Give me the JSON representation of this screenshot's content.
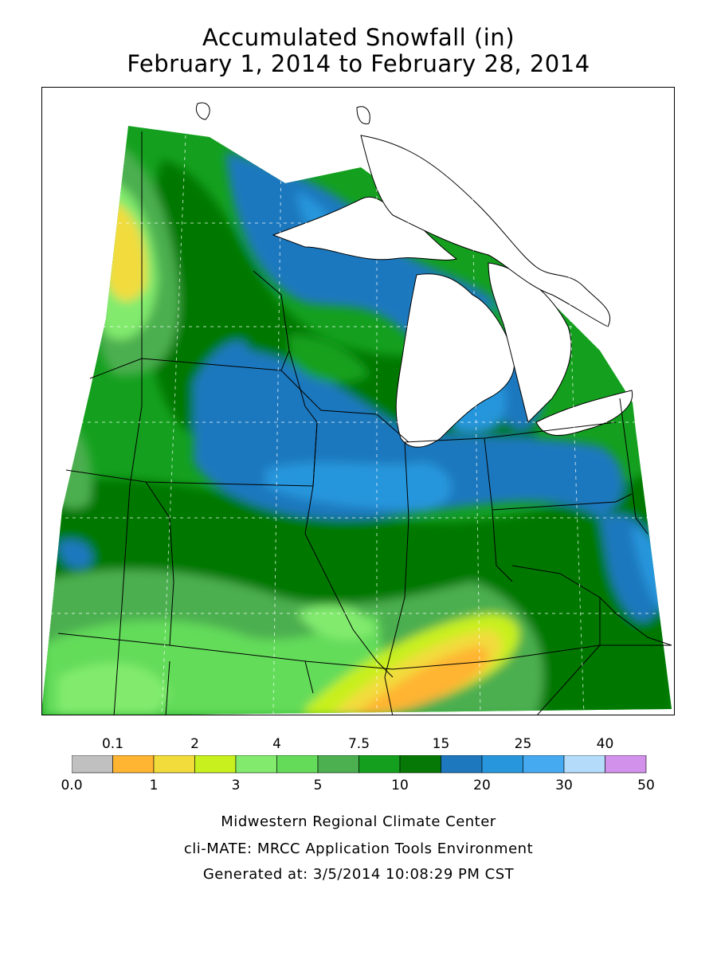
{
  "title": {
    "line1": "Accumulated Snowfall (in)",
    "line2": "February 1, 2014 to February 28, 2014"
  },
  "legend": {
    "upper_labels": [
      "0.1",
      "2",
      "4",
      "7.5",
      "15",
      "25",
      "40"
    ],
    "lower_labels": [
      "0.0",
      "1",
      "3",
      "5",
      "10",
      "20",
      "30",
      "50"
    ],
    "colors": [
      "#c0c0c0",
      "#ffb432",
      "#f2dc3c",
      "#c8f01e",
      "#82eb6e",
      "#64dc5a",
      "#4caf50",
      "#14a01e",
      "#057805",
      "#1e78be",
      "#2896dc",
      "#46aaf0",
      "#b4dcfa",
      "#d291eb"
    ]
  },
  "footer": {
    "line1": "Midwestern Regional Climate Center",
    "line2": "cli-MATE: MRCC Application Tools Environment",
    "line3": "Generated at: 3/5/2014 10:08:29 PM CST"
  }
}
